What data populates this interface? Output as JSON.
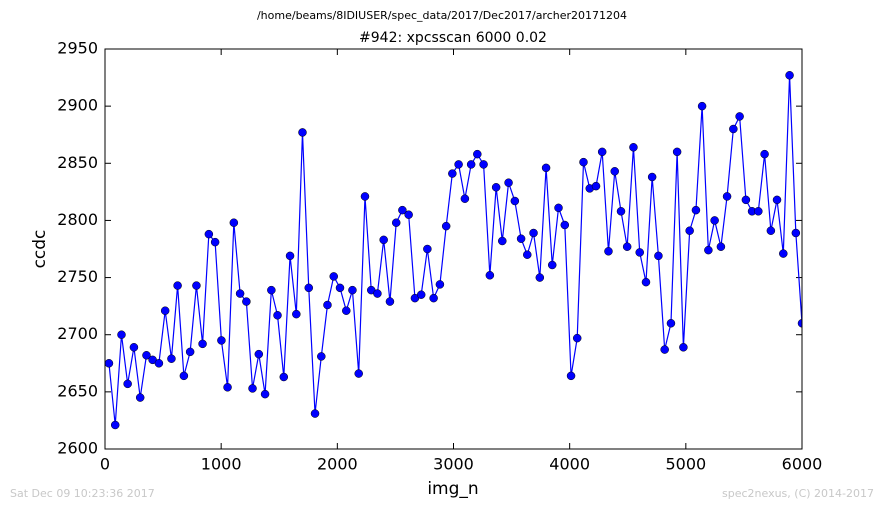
{
  "chart_data": {
    "type": "line",
    "suptitle": "/home/beams/8IDIUSER/spec_data/2017/Dec2017/archer20171204",
    "title": "#942: xpcsscan 6000 0.02",
    "xlabel": "img_n",
    "ylabel": "ccdc",
    "footer_left": "Sat Dec 09 10:23:36 2017",
    "footer_right": "spec2nexus, (C) 2014-2017",
    "xlim": [
      0,
      6000
    ],
    "ylim": [
      2600,
      2950
    ],
    "xticks": [
      0,
      1000,
      2000,
      3000,
      4000,
      5000,
      6000
    ],
    "yticks": [
      2600,
      2650,
      2700,
      2750,
      2800,
      2850,
      2900,
      2950
    ],
    "x": [
      34,
      88,
      142,
      195,
      249,
      303,
      357,
      410,
      464,
      518,
      572,
      625,
      679,
      733,
      787,
      840,
      894,
      948,
      1002,
      1055,
      1109,
      1163,
      1217,
      1270,
      1324,
      1378,
      1432,
      1485,
      1539,
      1593,
      1647,
      1700,
      1754,
      1808,
      1862,
      1915,
      1969,
      2023,
      2077,
      2130,
      2184,
      2238,
      2292,
      2345,
      2399,
      2453,
      2507,
      2560,
      2614,
      2668,
      2722,
      2775,
      2829,
      2883,
      2937,
      2990,
      3044,
      3098,
      3152,
      3205,
      3259,
      3313,
      3367,
      3420,
      3474,
      3528,
      3582,
      3635,
      3689,
      3743,
      3797,
      3850,
      3904,
      3958,
      4012,
      4065,
      4119,
      4173,
      4227,
      4280,
      4334,
      4388,
      4442,
      4495,
      4549,
      4603,
      4657,
      4710,
      4764,
      4818,
      4872,
      4925,
      4979,
      5033,
      5087,
      5140,
      5194,
      5248,
      5302,
      5355,
      5409,
      5463,
      5517,
      5570,
      5624,
      5678,
      5732,
      5785,
      5839,
      5893,
      5947,
      6000
    ],
    "series": [
      {
        "color": "#0000ff",
        "values": [
          2675,
          2621,
          2700,
          2657,
          2689,
          2645,
          2682,
          2678,
          2675,
          2721,
          2679,
          2743,
          2664,
          2685,
          2743,
          2692,
          2788,
          2781,
          2695,
          2654,
          2798,
          2736,
          2729,
          2653,
          2683,
          2648,
          2739,
          2717,
          2663,
          2769,
          2718,
          2877,
          2741,
          2631,
          2681,
          2726,
          2751,
          2741,
          2721,
          2739,
          2666,
          2821,
          2739,
          2736,
          2783,
          2729,
          2798,
          2809,
          2805,
          2732,
          2735,
          2775,
          2732,
          2744,
          2795,
          2841,
          2849,
          2819,
          2849,
          2858,
          2849,
          2752,
          2829,
          2782,
          2833,
          2817,
          2784,
          2770,
          2789,
          2750,
          2846,
          2761,
          2811,
          2796,
          2664,
          2697,
          2851,
          2828,
          2830,
          2860,
          2773,
          2843,
          2808,
          2777,
          2864,
          2772,
          2746,
          2838,
          2769,
          2687,
          2710,
          2860,
          2689,
          2791,
          2809,
          2900,
          2774,
          2800,
          2777,
          2821,
          2880,
          2891,
          2818,
          2808,
          2808,
          2858,
          2791,
          2818,
          2771,
          2927,
          2789,
          2710
        ]
      }
    ]
  }
}
